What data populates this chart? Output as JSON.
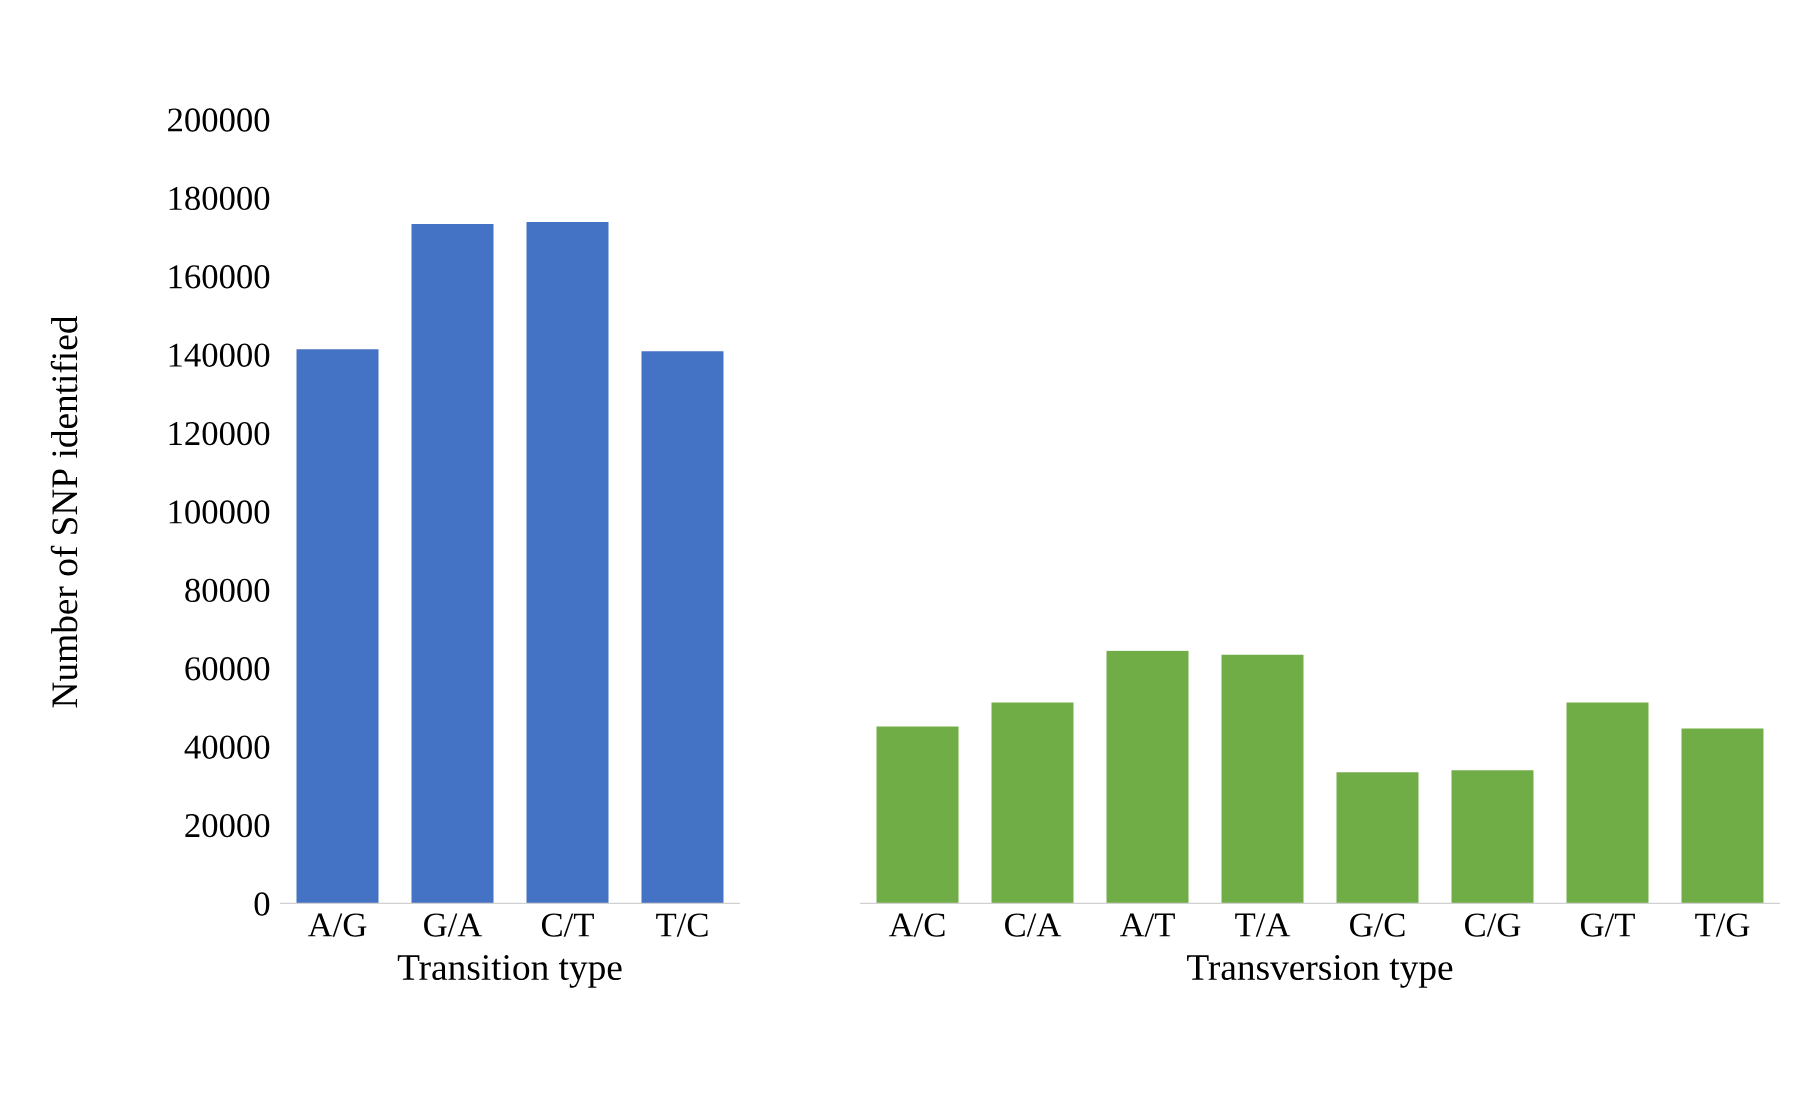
{
  "chart_data": [
    {
      "type": "bar",
      "categories": [
        "A/G",
        "G/A",
        "C/T",
        "T/C"
      ],
      "values": [
        141500,
        173500,
        174000,
        141000
      ],
      "color": "#4472c4",
      "xlabel": "Transition type",
      "ylabel": "Number of SNP identified",
      "ylim": [
        0,
        200000
      ],
      "yticks": [
        0,
        20000,
        40000,
        60000,
        80000,
        100000,
        120000,
        140000,
        160000,
        180000,
        200000
      ]
    },
    {
      "type": "bar",
      "categories": [
        "A/C",
        "C/A",
        "A/T",
        "T/A",
        "G/C",
        "C/G",
        "G/T",
        "T/G"
      ],
      "values": [
        45300,
        51400,
        64600,
        63600,
        33600,
        34100,
        51400,
        44800
      ],
      "color": "#70ad47",
      "xlabel": "Transversion type",
      "ylim": [
        0,
        200000
      ],
      "yticks": [
        0,
        20000,
        40000,
        60000,
        80000,
        100000,
        120000,
        140000,
        160000,
        180000,
        200000
      ],
      "tick_labels": "x"
    }
  ]
}
